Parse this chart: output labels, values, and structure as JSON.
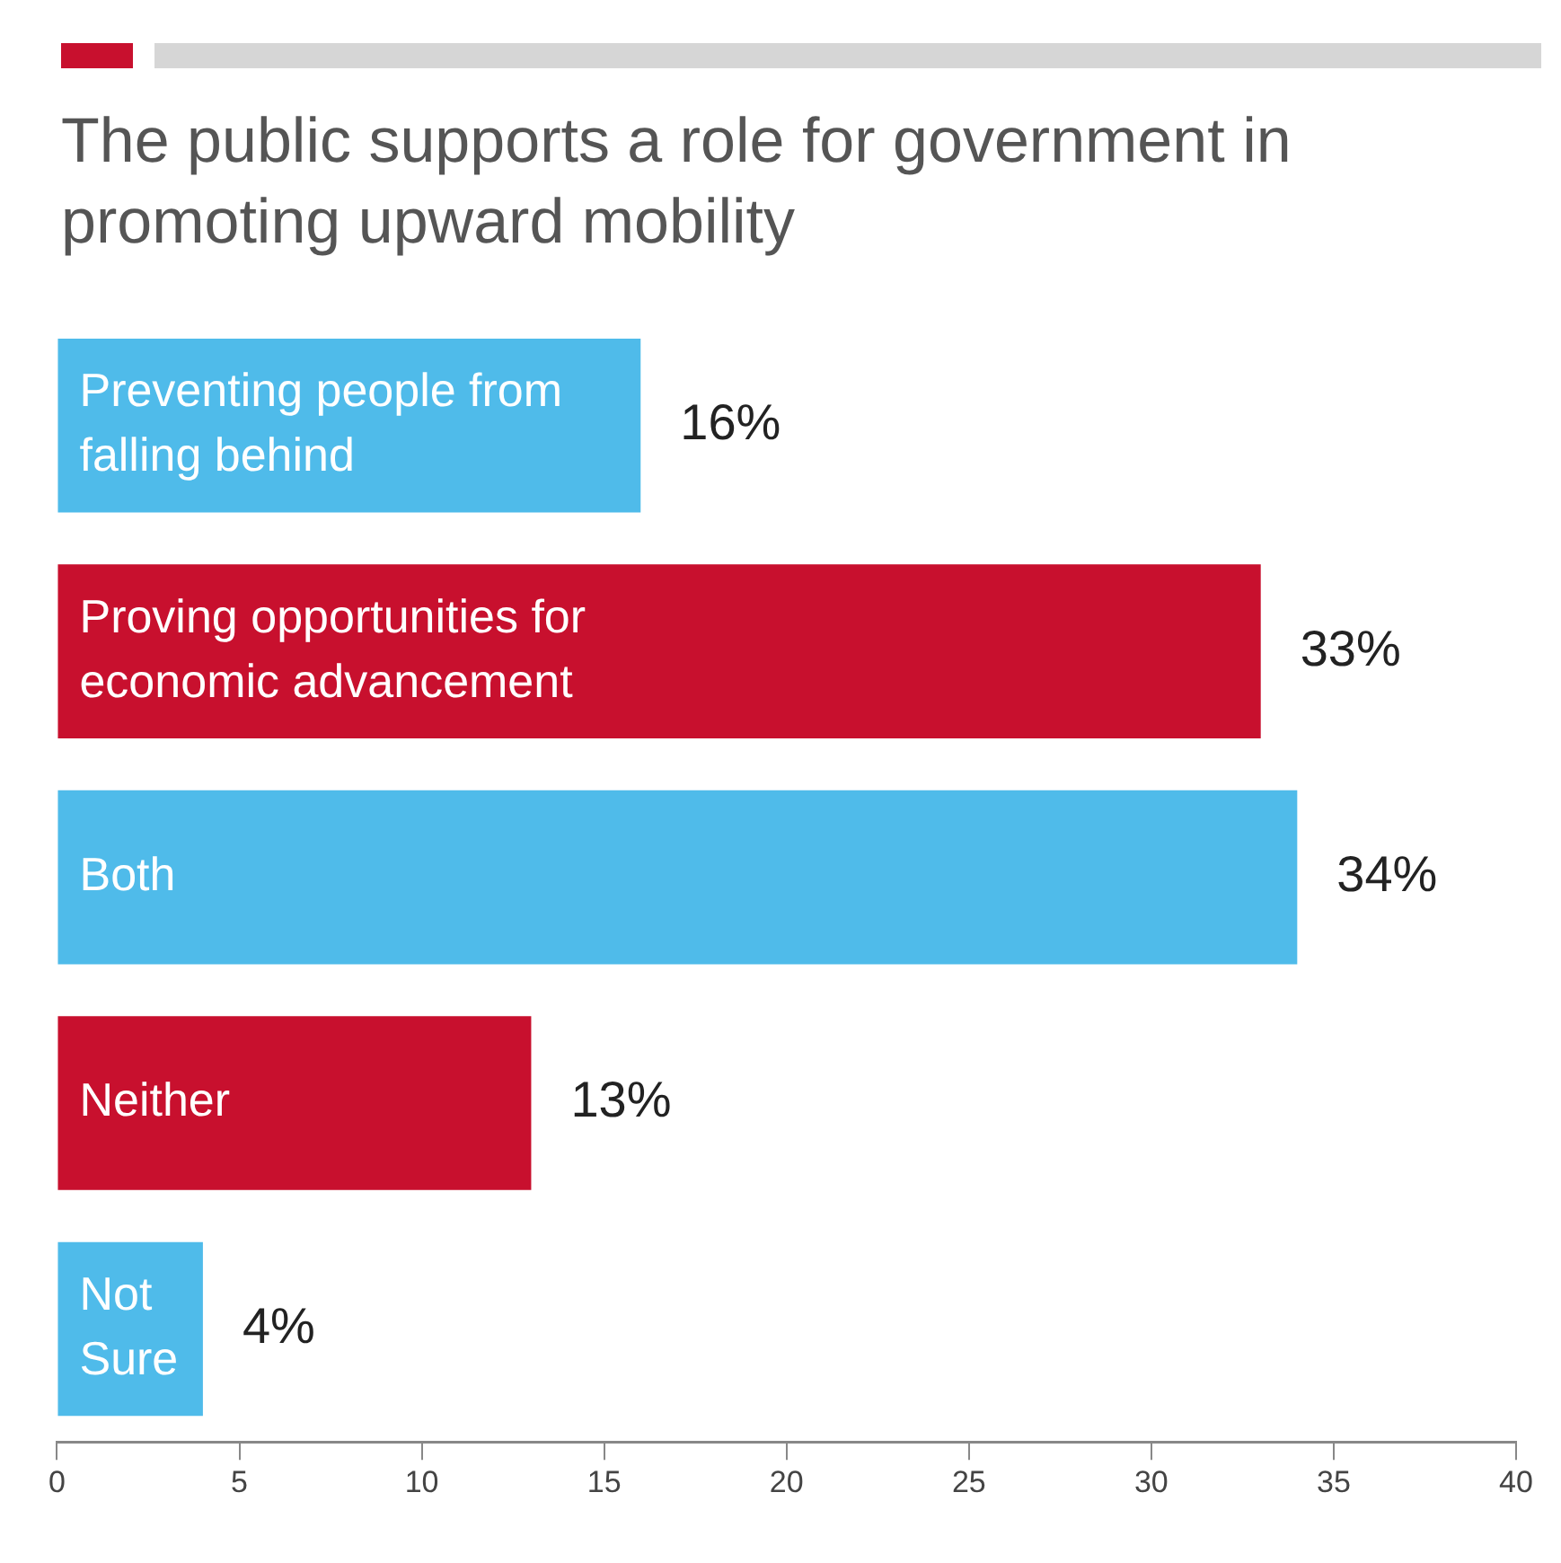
{
  "chart_data": {
    "type": "bar",
    "orientation": "horizontal",
    "title": "The public supports a role for government in promoting upward mobility",
    "categories": [
      "Preventing people from falling behind",
      "Proving opportunities for economic advancement",
      "Both",
      "Neither",
      "Not Sure"
    ],
    "values": [
      16,
      33,
      34,
      13,
      4
    ],
    "value_labels": [
      "16%",
      "33%",
      "34%",
      "13%",
      "4%"
    ],
    "colors": [
      "#4fbbea",
      "#c8102e",
      "#4fbbea",
      "#c8102e",
      "#4fbbea"
    ],
    "xlim": [
      0,
      40
    ],
    "xticks": [
      0,
      5,
      10,
      15,
      20,
      25,
      30,
      35,
      40
    ],
    "grid": false,
    "legend": false
  }
}
